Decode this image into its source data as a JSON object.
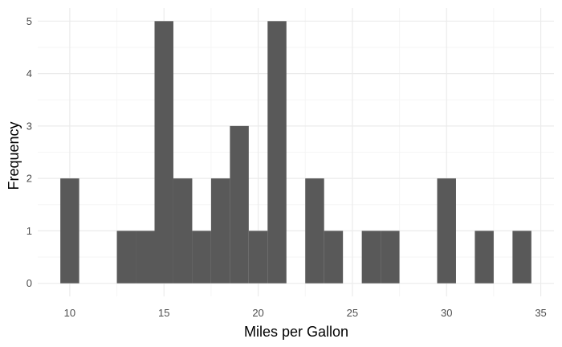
{
  "chart_data": {
    "type": "bar",
    "title": "",
    "xlabel": "Miles per Gallon",
    "ylabel": "Frequency",
    "bin_width": 1,
    "bins": [
      {
        "x0": 9.5,
        "x1": 10.5,
        "count": 2
      },
      {
        "x0": 10.5,
        "x1": 11.5,
        "count": 0
      },
      {
        "x0": 11.5,
        "x1": 12.5,
        "count": 0
      },
      {
        "x0": 12.5,
        "x1": 13.5,
        "count": 1
      },
      {
        "x0": 13.5,
        "x1": 14.5,
        "count": 1
      },
      {
        "x0": 14.5,
        "x1": 15.5,
        "count": 5
      },
      {
        "x0": 15.5,
        "x1": 16.5,
        "count": 2
      },
      {
        "x0": 16.5,
        "x1": 17.5,
        "count": 1
      },
      {
        "x0": 17.5,
        "x1": 18.5,
        "count": 2
      },
      {
        "x0": 18.5,
        "x1": 19.5,
        "count": 3
      },
      {
        "x0": 19.5,
        "x1": 20.5,
        "count": 1
      },
      {
        "x0": 20.5,
        "x1": 21.5,
        "count": 5
      },
      {
        "x0": 21.5,
        "x1": 22.5,
        "count": 0
      },
      {
        "x0": 22.5,
        "x1": 23.5,
        "count": 2
      },
      {
        "x0": 23.5,
        "x1": 24.5,
        "count": 1
      },
      {
        "x0": 24.5,
        "x1": 25.5,
        "count": 0
      },
      {
        "x0": 25.5,
        "x1": 26.5,
        "count": 1
      },
      {
        "x0": 26.5,
        "x1": 27.5,
        "count": 1
      },
      {
        "x0": 27.5,
        "x1": 28.5,
        "count": 0
      },
      {
        "x0": 28.5,
        "x1": 29.5,
        "count": 0
      },
      {
        "x0": 29.5,
        "x1": 30.5,
        "count": 2
      },
      {
        "x0": 30.5,
        "x1": 31.5,
        "count": 0
      },
      {
        "x0": 31.5,
        "x1": 32.5,
        "count": 1
      },
      {
        "x0": 32.5,
        "x1": 33.5,
        "count": 0
      },
      {
        "x0": 33.5,
        "x1": 34.5,
        "count": 1
      }
    ],
    "xlim": [
      8.3,
      35.7
    ],
    "ylim": [
      -0.25,
      5.25
    ],
    "x_ticks": [
      10,
      15,
      20,
      25,
      30,
      35
    ],
    "x_tick_labels": [
      "10",
      "15",
      "20",
      "25",
      "30",
      "35"
    ],
    "y_ticks": [
      0,
      1,
      2,
      3,
      4,
      5
    ],
    "y_tick_labels": [
      "0",
      "1",
      "2",
      "3",
      "4",
      "5"
    ],
    "grid": true,
    "legend": "none",
    "colors": {
      "bar_fill": "#595959",
      "grid_major": "#ebebeb",
      "grid_minor": "#f5f5f5",
      "tick_text": "#4d4d4d",
      "background": "#ffffff"
    }
  }
}
